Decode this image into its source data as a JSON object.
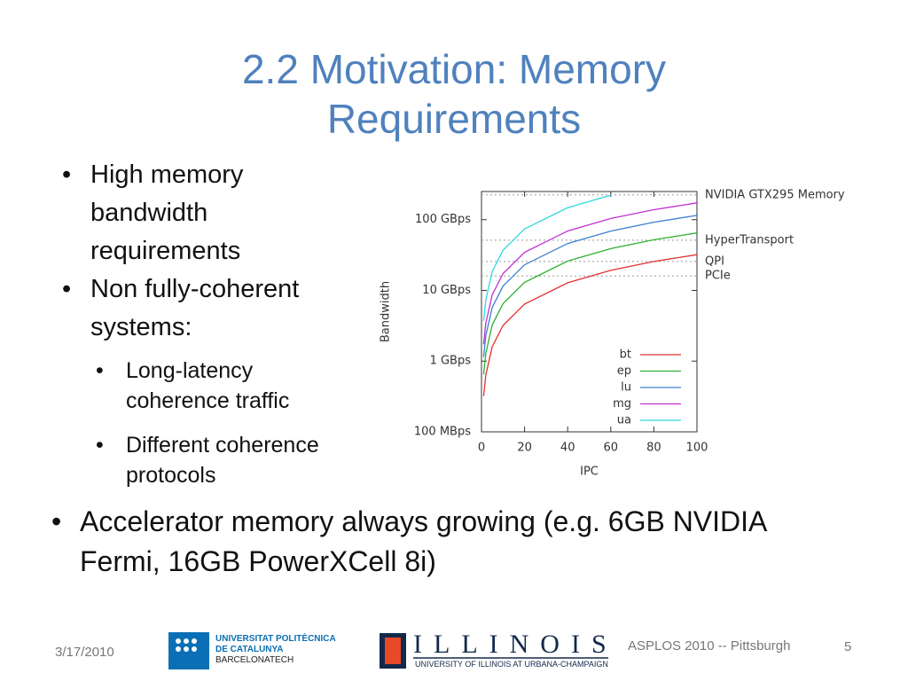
{
  "slide": {
    "title_lines": [
      "2.2 Motivation: Memory",
      "Requirements"
    ],
    "bullets": [
      {
        "text": "High memory bandwidth requirements"
      },
      {
        "text": "Non fully-coherent systems:",
        "sub": [
          "Long-latency coherence traffic",
          "Different coherence protocols"
        ]
      }
    ],
    "bottom_bullet": "Accelerator memory always growing (e.g. 6GB NVIDIA Fermi, 16GB PowerXCell 8i)",
    "footer": {
      "date": "3/17/2010",
      "event": "ASPLOS 2010 -- Pittsburgh",
      "page": 5,
      "upc": [
        "UNIVERSITAT POLITÈCNICA",
        "DE CATALUNYA",
        "BARCELONATECH"
      ],
      "illinois": [
        "ILLINOIS",
        "UNIVERSITY OF ILLINOIS AT URBANA-CHAMPAIGN"
      ]
    }
  },
  "chart_data": {
    "type": "line",
    "x_label": "IPC",
    "y_label": "Bandwidth",
    "log_y": true,
    "legend": "lower right",
    "xlim": [
      0,
      100
    ],
    "xticks": [
      0,
      20,
      40,
      60,
      80,
      100
    ],
    "ylim": [
      0.1,
      250
    ],
    "yticks": [
      {
        "value": 0.1,
        "label": "100 MBps"
      },
      {
        "value": 1,
        "label": "1 GBps"
      },
      {
        "value": 10,
        "label": "10 GBps"
      },
      {
        "value": 100,
        "label": "100 GBps"
      }
    ],
    "x": [
      1,
      2,
      5,
      10,
      20,
      40,
      60,
      80,
      100
    ],
    "series": [
      {
        "name": "bt",
        "color": "#e03030",
        "values": [
          0.32,
          0.64,
          1.6,
          3.2,
          6.4,
          12.8,
          19.2,
          25.6,
          32
        ]
      },
      {
        "name": "ep",
        "color": "#30b030",
        "values": [
          0.65,
          1.3,
          3.25,
          6.5,
          13,
          26,
          39,
          52,
          65
        ]
      },
      {
        "name": "lu",
        "color": "#3a7fd0",
        "values": [
          1.15,
          2.3,
          5.75,
          11.5,
          23,
          46,
          69,
          92,
          115
        ]
      },
      {
        "name": "mg",
        "color": "#c030d0",
        "values": [
          1.73,
          3.46,
          8.65,
          17.3,
          34.6,
          69.2,
          103.8,
          138.4,
          173
        ]
      },
      {
        "name": "ua",
        "color": "#30d8e0",
        "values": [
          3.7,
          7.4,
          18.5,
          37,
          74,
          148,
          222,
          null,
          null
        ]
      }
    ],
    "reference_lines": [
      {
        "name": "NVIDIA GTX295 Memory",
        "value": 224
      },
      {
        "name": "HyperTransport",
        "value": 51.2
      },
      {
        "name": "QPI",
        "value": 25.6
      },
      {
        "name": "PCIe",
        "value": 16
      }
    ],
    "reference_color": "#999999"
  }
}
